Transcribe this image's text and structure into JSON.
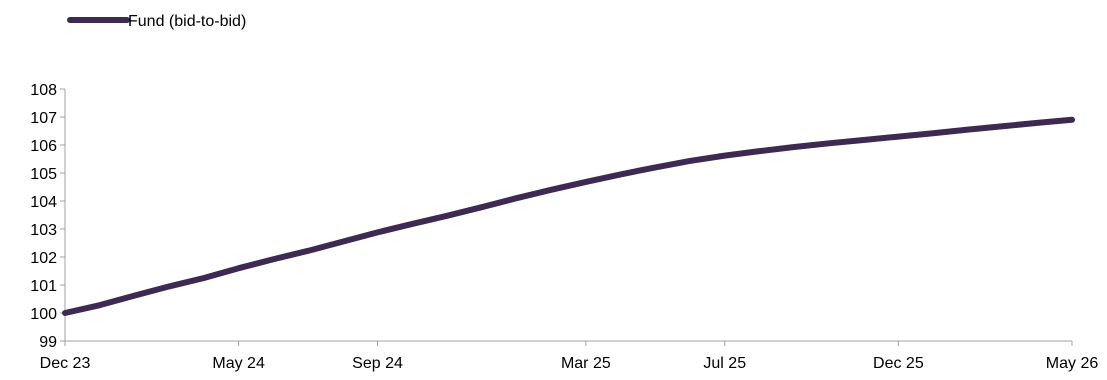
{
  "chart_data": {
    "type": "line",
    "title": "",
    "xlabel": "",
    "ylabel": "",
    "legend_position": "top-left",
    "grid": false,
    "x": [
      "Dec 23",
      "Jan 24",
      "Feb 24",
      "Mar 24",
      "Apr 24",
      "May 24",
      "Jun 24",
      "Jul 24",
      "Aug 24",
      "Sep 24",
      "Oct 24",
      "Nov 24",
      "Dec 24",
      "Jan 25",
      "Feb 25",
      "Mar 25",
      "Apr 25",
      "May 25",
      "Jun 25",
      "Jul 25",
      "Aug 25",
      "Sep 25",
      "Oct 25",
      "Nov 25",
      "Dec 25",
      "Jan 26",
      "Feb 26",
      "Mar 26",
      "Apr 26",
      "May 26"
    ],
    "x_tick_labels": [
      "Dec 23",
      "May 24",
      "Sep 24",
      "Mar 25",
      "Jul 25",
      "Dec 25",
      "May 26"
    ],
    "ylim": [
      99,
      108
    ],
    "y_ticks": [
      99,
      100,
      101,
      102,
      103,
      104,
      105,
      106,
      107,
      108
    ],
    "series": [
      {
        "name": "Fund (bid-to-bid)",
        "color": "#3d2a52",
        "values": [
          100.0,
          100.28,
          100.62,
          100.95,
          101.25,
          101.6,
          101.92,
          102.22,
          102.55,
          102.88,
          103.18,
          103.47,
          103.78,
          104.1,
          104.4,
          104.68,
          104.95,
          105.2,
          105.43,
          105.62,
          105.78,
          105.93,
          106.06,
          106.18,
          106.3,
          106.42,
          106.55,
          106.67,
          106.79,
          106.9
        ]
      }
    ]
  }
}
